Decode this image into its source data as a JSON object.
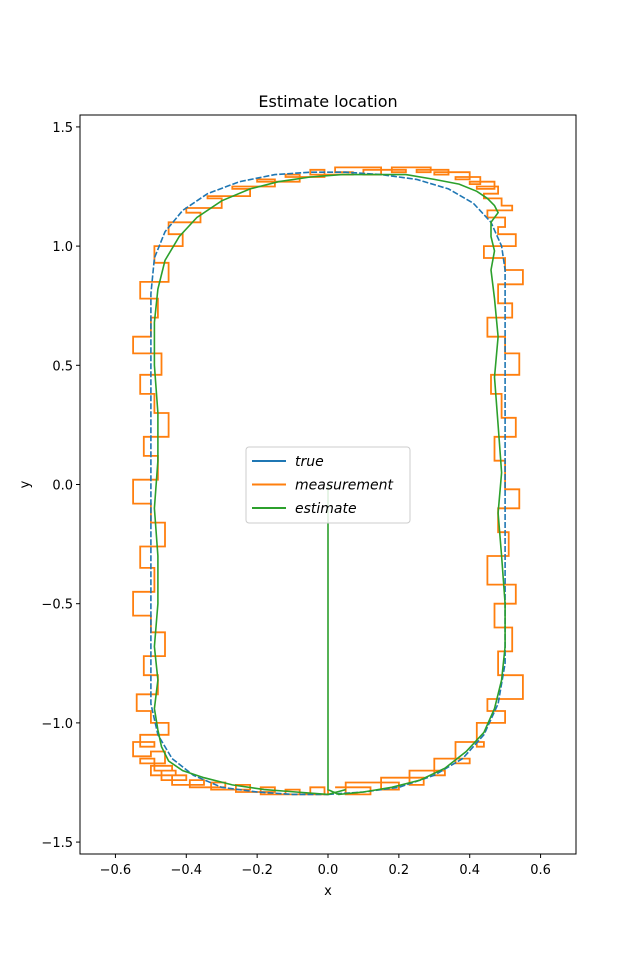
{
  "chart_data": {
    "type": "line",
    "title": "Estimate location",
    "xlabel": "x",
    "ylabel": "y",
    "xlim": [
      -0.7,
      0.7
    ],
    "ylim": [
      -1.55,
      1.55
    ],
    "xticks": [
      -0.6,
      -0.4,
      -0.2,
      0.0,
      0.2,
      0.4,
      0.6
    ],
    "xtick_labels": [
      "−0.6",
      "−0.4",
      "−0.2",
      "0.0",
      "0.2",
      "0.4",
      "0.6"
    ],
    "yticks": [
      -1.5,
      -1.0,
      -0.5,
      0.0,
      0.5,
      1.0,
      1.5
    ],
    "ytick_labels": [
      "−1.5",
      "−1.0",
      "−0.5",
      "0.0",
      "0.5",
      "1.0",
      "1.5"
    ],
    "grid": false,
    "legend_position": "center",
    "series": [
      {
        "name": "true",
        "color": "#1f77b4",
        "style": "solid",
        "x": [
          0.0,
          0.1,
          0.2,
          0.3,
          0.38,
          0.44,
          0.48,
          0.5,
          0.5,
          0.5,
          0.5,
          0.5,
          0.5,
          0.5,
          0.5,
          0.49,
          0.46,
          0.41,
          0.34,
          0.25,
          0.15,
          0.05,
          -0.05,
          -0.15,
          -0.25,
          -0.34,
          -0.41,
          -0.46,
          -0.49,
          -0.5,
          -0.5,
          -0.5,
          -0.5,
          -0.5,
          -0.5,
          -0.5,
          -0.5,
          -0.48,
          -0.44,
          -0.38,
          -0.3,
          -0.2,
          -0.1,
          0.0
        ],
        "y": [
          -1.3,
          -1.29,
          -1.27,
          -1.22,
          -1.15,
          -1.05,
          -0.92,
          -0.75,
          -0.5,
          -0.25,
          0.0,
          0.25,
          0.5,
          0.75,
          0.9,
          1.0,
          1.1,
          1.18,
          1.24,
          1.28,
          1.3,
          1.31,
          1.31,
          1.3,
          1.27,
          1.22,
          1.15,
          1.06,
          0.95,
          0.8,
          0.5,
          0.25,
          0.0,
          -0.25,
          -0.5,
          -0.75,
          -0.92,
          -1.05,
          -1.15,
          -1.22,
          -1.27,
          -1.29,
          -1.3,
          -1.3
        ]
      },
      {
        "name": "measurement",
        "color": "#ff7f0e",
        "style": "steps",
        "x": [
          0.02,
          0.12,
          0.05,
          0.2,
          0.15,
          0.27,
          0.23,
          0.33,
          0.3,
          0.4,
          0.36,
          0.44,
          0.42,
          0.5,
          0.45,
          0.55,
          0.48,
          0.52,
          0.47,
          0.53,
          0.45,
          0.51,
          0.48,
          0.54,
          0.5,
          0.47,
          0.53,
          0.49,
          0.46,
          0.54,
          0.5,
          0.45,
          0.52,
          0.48,
          0.55,
          0.5,
          0.44,
          0.53,
          0.48,
          0.5,
          0.45,
          0.52,
          0.49,
          0.44,
          0.48,
          0.42,
          0.47,
          0.4,
          0.43,
          0.36,
          0.4,
          0.3,
          0.34,
          0.25,
          0.29,
          0.18,
          0.22,
          0.1,
          0.15,
          0.02,
          0.07,
          -0.05,
          -0.01,
          -0.12,
          -0.08,
          -0.2,
          -0.15,
          -0.27,
          -0.22,
          -0.34,
          -0.3,
          -0.4,
          -0.36,
          -0.45,
          -0.41,
          -0.49,
          -0.45,
          -0.53,
          -0.48,
          -0.5,
          -0.55,
          -0.47,
          -0.53,
          -0.49,
          -0.45,
          -0.52,
          -0.48,
          -0.55,
          -0.5,
          -0.46,
          -0.53,
          -0.49,
          -0.55,
          -0.5,
          -0.46,
          -0.52,
          -0.48,
          -0.54,
          -0.5,
          -0.45,
          -0.53,
          -0.49,
          -0.55,
          -0.5,
          -0.46,
          -0.53,
          -0.49,
          -0.44,
          -0.5,
          -0.43,
          -0.47,
          -0.4,
          -0.44,
          -0.35,
          -0.39,
          -0.29,
          -0.33,
          -0.22,
          -0.26,
          -0.15,
          -0.19,
          -0.08,
          -0.12,
          -0.01,
          -0.05,
          0.0
        ],
        "y": [
          -1.27,
          -1.3,
          -1.25,
          -1.28,
          -1.23,
          -1.26,
          -1.2,
          -1.22,
          -1.15,
          -1.17,
          -1.08,
          -1.1,
          -1.0,
          -0.95,
          -0.9,
          -0.8,
          -0.7,
          -0.6,
          -0.5,
          -0.42,
          -0.3,
          -0.2,
          -0.1,
          -0.02,
          0.1,
          0.2,
          0.28,
          0.38,
          0.46,
          0.55,
          0.62,
          0.7,
          0.76,
          0.84,
          0.9,
          0.95,
          1.0,
          1.05,
          1.08,
          1.12,
          1.15,
          1.17,
          1.2,
          1.22,
          1.25,
          1.24,
          1.27,
          1.26,
          1.29,
          1.28,
          1.31,
          1.3,
          1.32,
          1.31,
          1.33,
          1.31,
          1.32,
          1.3,
          1.33,
          1.31,
          1.3,
          1.32,
          1.29,
          1.3,
          1.27,
          1.28,
          1.25,
          1.24,
          1.21,
          1.2,
          1.16,
          1.14,
          1.1,
          1.05,
          1.0,
          0.93,
          0.85,
          0.78,
          0.7,
          0.62,
          0.55,
          0.46,
          0.38,
          0.3,
          0.2,
          0.12,
          0.02,
          -0.08,
          -0.16,
          -0.26,
          -0.35,
          -0.45,
          -0.55,
          -0.62,
          -0.72,
          -0.8,
          -0.88,
          -0.95,
          -1.0,
          -1.05,
          -1.1,
          -1.08,
          -1.14,
          -1.12,
          -1.17,
          -1.15,
          -1.2,
          -1.18,
          -1.22,
          -1.2,
          -1.24,
          -1.22,
          -1.26,
          -1.24,
          -1.27,
          -1.25,
          -1.28,
          -1.26,
          -1.29,
          -1.27,
          -1.3,
          -1.28,
          -1.3,
          -1.27,
          -1.3,
          -1.28
        ]
      },
      {
        "name": "estimate",
        "color": "#2ca02c",
        "style": "solid",
        "x": [
          0.0,
          0.0,
          0.0,
          0.03,
          0.1,
          0.18,
          0.26,
          0.33,
          0.39,
          0.44,
          0.47,
          0.49,
          0.5,
          0.5,
          0.49,
          0.48,
          0.49,
          0.48,
          0.47,
          0.48,
          0.47,
          0.46,
          0.47,
          0.46,
          0.46,
          0.48,
          0.47,
          0.45,
          0.42,
          0.37,
          0.3,
          0.22,
          0.13,
          0.04,
          -0.05,
          -0.14,
          -0.22,
          -0.3,
          -0.37,
          -0.42,
          -0.46,
          -0.48,
          -0.49,
          -0.49,
          -0.48,
          -0.48,
          -0.49,
          -0.48,
          -0.48,
          -0.49,
          -0.48,
          -0.49,
          -0.48,
          -0.47,
          -0.45,
          -0.41,
          -0.35,
          -0.27,
          -0.18,
          -0.09,
          0.0,
          0.05
        ],
        "y": [
          0.0,
          -0.8,
          -1.28,
          -1.3,
          -1.29,
          -1.27,
          -1.24,
          -1.19,
          -1.12,
          -1.04,
          -0.94,
          -0.82,
          -0.68,
          -0.5,
          -0.3,
          -0.12,
          0.05,
          0.25,
          0.45,
          0.62,
          0.78,
          0.9,
          0.98,
          1.04,
          1.1,
          1.14,
          1.17,
          1.2,
          1.23,
          1.26,
          1.28,
          1.3,
          1.3,
          1.3,
          1.29,
          1.27,
          1.24,
          1.19,
          1.12,
          1.04,
          0.94,
          0.82,
          0.68,
          0.5,
          0.3,
          0.1,
          -0.1,
          -0.3,
          -0.5,
          -0.68,
          -0.82,
          -0.94,
          -1.03,
          -1.1,
          -1.16,
          -1.2,
          -1.23,
          -1.26,
          -1.28,
          -1.29,
          -1.3,
          -1.28
        ]
      }
    ]
  }
}
